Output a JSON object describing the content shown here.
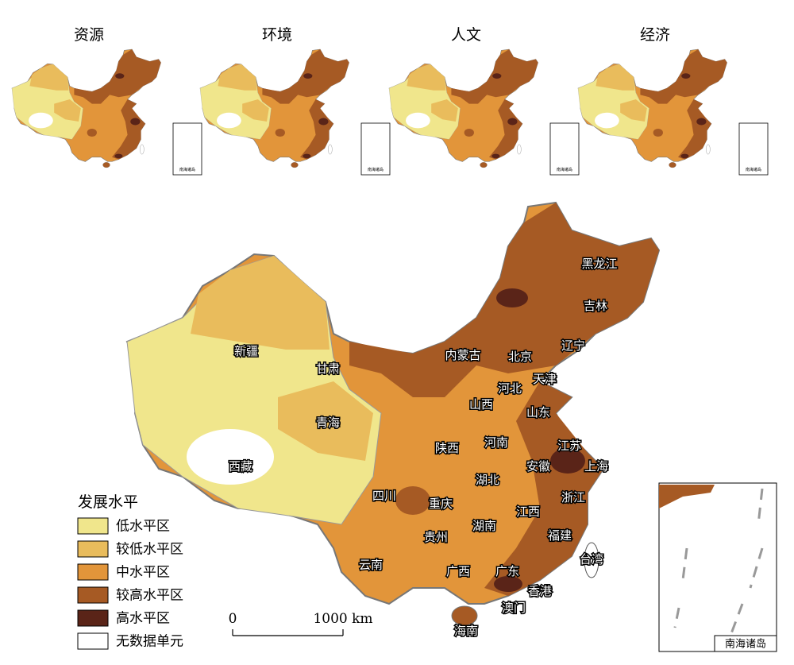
{
  "small_maps": [
    {
      "title": "资源",
      "inset_label": "南海诸岛"
    },
    {
      "title": "环境",
      "inset_label": "南海诸岛"
    },
    {
      "title": "人文",
      "inset_label": "南海诸岛"
    },
    {
      "title": "经济",
      "inset_label": "南海诸岛"
    }
  ],
  "main_map": {
    "provinces": [
      "黑龙江",
      "吉林",
      "辽宁",
      "内蒙古",
      "北京",
      "天津",
      "河北",
      "山西",
      "山东",
      "新疆",
      "甘肃",
      "青海",
      "西藏",
      "陕西",
      "河南",
      "江苏",
      "安徽",
      "上海",
      "四川",
      "重庆",
      "湖北",
      "浙江",
      "江西",
      "湖南",
      "贵州",
      "福建",
      "台湾",
      "云南",
      "广西",
      "广东",
      "香港",
      "澳门",
      "海南"
    ],
    "inset_label": "南海诸岛"
  },
  "legend": {
    "title": "发展水平",
    "items": [
      {
        "label": "低水平区",
        "color": "#f0e68c"
      },
      {
        "label": "较低水平区",
        "color": "#e9bc5c"
      },
      {
        "label": "中水平区",
        "color": "#e2953a"
      },
      {
        "label": "较高水平区",
        "color": "#a65a24"
      },
      {
        "label": "高水平区",
        "color": "#5a2418"
      },
      {
        "label": "无数据单元",
        "color": "#ffffff"
      }
    ]
  },
  "scale_bar": {
    "ticks": [
      0,
      {
        "value": 1000,
        "label": "1000 km"
      }
    ]
  }
}
